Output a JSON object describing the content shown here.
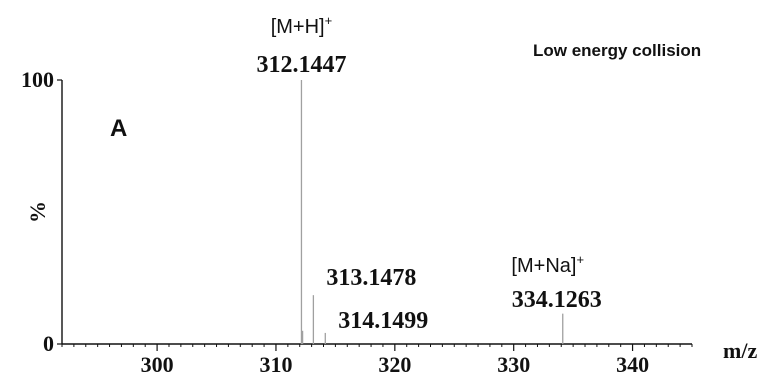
{
  "chart_data": {
    "type": "line",
    "title": "Low energy collision",
    "panel_label": "A",
    "xlabel": "m/z",
    "ylabel": "%",
    "xlim": [
      292,
      345
    ],
    "ylim": [
      0,
      100
    ],
    "x_ticks": [
      300,
      310,
      320,
      330,
      340
    ],
    "x_tick_labels": [
      "300",
      "310",
      "320",
      "330",
      "340"
    ],
    "y_ticks": [
      0,
      100
    ],
    "y_tick_labels": [
      "0",
      "100"
    ],
    "peaks": [
      {
        "x": 312.1447,
        "y": 100,
        "label": "312.1447",
        "ion": "[M+H]",
        "ion_sup": "+"
      },
      {
        "x": 312.24,
        "y": 5,
        "label": "",
        "ion": "",
        "ion_sup": ""
      },
      {
        "x": 313.1478,
        "y": 18.5,
        "label": "313.1478",
        "ion": "",
        "ion_sup": ""
      },
      {
        "x": 314.1499,
        "y": 4.2,
        "label": "314.1499",
        "ion": "",
        "ion_sup": ""
      },
      {
        "x": 334.1263,
        "y": 11.5,
        "label": "334.1263",
        "ion": "[M+Na]",
        "ion_sup": "+"
      }
    ],
    "colors": {
      "peak": "#a0a0a0",
      "axis": "#111111",
      "text": "#111111"
    }
  }
}
